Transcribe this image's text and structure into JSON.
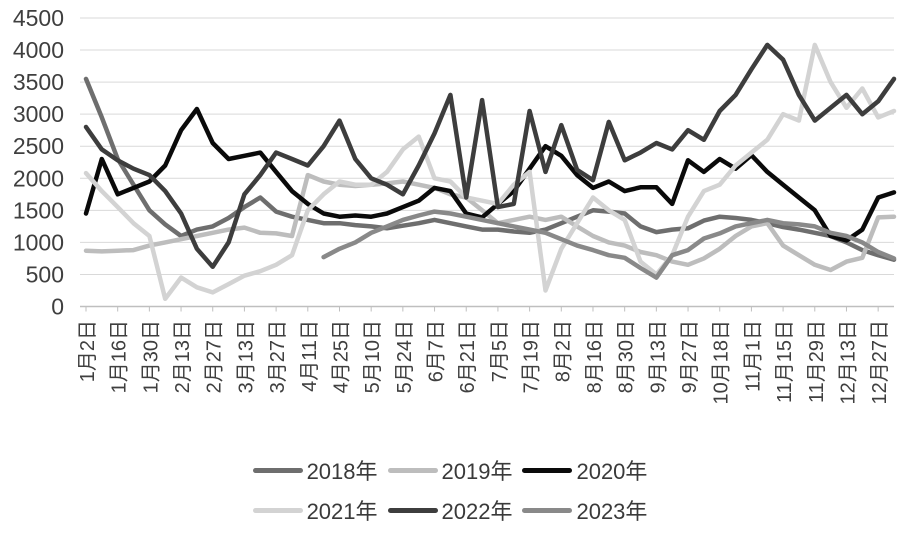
{
  "chart_data": {
    "type": "line",
    "title": "",
    "xlabel": "",
    "ylabel": "",
    "ylim": [
      0,
      4500
    ],
    "y_tick_step": 500,
    "y_tick_labels": [
      "0",
      "500",
      "1000",
      "1500",
      "2000",
      "2500",
      "3000",
      "3500",
      "4000",
      "4500"
    ],
    "grid": "horizontal-gridlines-on",
    "legend_position": "bottom-two-rows",
    "points_per_series": 52,
    "x_tick_point_indices": [
      0,
      2,
      4,
      6,
      8,
      10,
      12,
      14,
      16,
      18,
      20,
      22,
      24,
      26,
      28,
      30,
      32,
      34,
      36,
      38,
      40,
      42,
      44,
      46,
      48,
      50
    ],
    "x_tick_labels": [
      "1月2日",
      "1月16日",
      "1月30日",
      "2月13日",
      "2月27日",
      "3月13日",
      "3月27日",
      "4月11日",
      "4月25日",
      "5月10日",
      "5月24日",
      "6月7日",
      "6月21日",
      "7月5日",
      "7月19日",
      "8月2日",
      "8月16日",
      "8月30日",
      "9月13日",
      "9月27日",
      "10月18日",
      "11月1日",
      "11月15日",
      "11月29日",
      "12月13日",
      "12月27日"
    ],
    "legend_rows": [
      [
        "2018年",
        "2019年",
        "2020年"
      ],
      [
        "2021年",
        "2022年",
        "2023年"
      ]
    ],
    "series": [
      {
        "name": "2018年",
        "color": "#6e6e6e",
        "values": [
          3550,
          2950,
          2300,
          1900,
          1500,
          1280,
          1100,
          1200,
          1250,
          1380,
          1550,
          1700,
          1480,
          1400,
          1350,
          1300,
          1300,
          1270,
          1250,
          1220,
          1260,
          1300,
          1350,
          1300,
          1250,
          1200,
          1200,
          1170,
          1150,
          1200,
          1300,
          1400,
          1500,
          1480,
          1450,
          1250,
          1160,
          1200,
          1220,
          1340,
          1400,
          1380,
          1350,
          1300,
          1240,
          1200,
          1150,
          1100,
          1000,
          880,
          800,
          730
        ]
      },
      {
        "name": "2019年",
        "color": "#bdbdbd",
        "values": [
          870,
          860,
          870,
          880,
          950,
          1000,
          1050,
          1100,
          1150,
          1200,
          1230,
          1150,
          1140,
          1100,
          2050,
          1950,
          1900,
          1880,
          1900,
          1920,
          1950,
          1900,
          1850,
          1750,
          1700,
          1500,
          1300,
          1350,
          1400,
          1350,
          1400,
          1250,
          1100,
          1000,
          950,
          850,
          800,
          700,
          650,
          750,
          900,
          1100,
          1250,
          1300,
          950,
          800,
          650,
          570,
          700,
          760,
          1390,
          1400
        ]
      },
      {
        "name": "2020年",
        "color": "#0a0a0a",
        "values": [
          1450,
          2300,
          1750,
          1850,
          1950,
          2200,
          2750,
          3080,
          2550,
          2300,
          2350,
          2400,
          2100,
          1800,
          1600,
          1450,
          1400,
          1420,
          1400,
          1450,
          1550,
          1650,
          1850,
          1800,
          1450,
          1390,
          1600,
          1800,
          2150,
          2500,
          2350,
          2050,
          1850,
          1950,
          1800,
          1860,
          1860,
          1600,
          2280,
          2100,
          2300,
          2150,
          2360,
          2100,
          1900,
          1700,
          1500,
          1100,
          1030,
          1200,
          1700,
          1780
        ]
      },
      {
        "name": "2021年",
        "color": "#d3d3d3",
        "values": [
          2080,
          1800,
          1550,
          1300,
          1100,
          120,
          450,
          300,
          220,
          350,
          480,
          550,
          650,
          800,
          1500,
          1750,
          1950,
          1900,
          1900,
          2100,
          2450,
          2650,
          2000,
          1950,
          1700,
          1650,
          1600,
          1900,
          2100,
          250,
          900,
          1300,
          1700,
          1500,
          1350,
          700,
          500,
          800,
          1400,
          1800,
          1900,
          2200,
          2400,
          2600,
          3000,
          2900,
          4080,
          3500,
          3100,
          3400,
          2950,
          3050
        ]
      },
      {
        "name": "2022年",
        "color": "#3d3d3d",
        "values": [
          2800,
          2450,
          2280,
          2150,
          2050,
          1800,
          1450,
          900,
          620,
          1000,
          1750,
          2050,
          2400,
          2300,
          2200,
          2500,
          2900,
          2300,
          2000,
          1900,
          1750,
          2200,
          2700,
          3300,
          1700,
          3220,
          1550,
          1600,
          3050,
          2100,
          2830,
          2130,
          1970,
          2880,
          2280,
          2400,
          2550,
          2450,
          2750,
          2600,
          3050,
          3300,
          3700,
          4080,
          3850,
          3300,
          2900,
          3100,
          3300,
          3000,
          3200,
          3550
        ]
      },
      {
        "name": "2023年",
        "color": "#898989",
        "values": [
          null,
          null,
          null,
          null,
          null,
          null,
          null,
          null,
          null,
          null,
          null,
          null,
          null,
          null,
          null,
          770,
          900,
          1000,
          1150,
          1250,
          1350,
          1420,
          1480,
          1450,
          1400,
          1350,
          1300,
          1250,
          1200,
          1150,
          1050,
          950,
          880,
          800,
          760,
          600,
          450,
          800,
          880,
          1060,
          1140,
          1250,
          1300,
          1350,
          1300,
          1280,
          1250,
          1150,
          1100,
          1000,
          850,
          750
        ]
      }
    ],
    "style": {
      "gridline_color": "#d9d9d9",
      "axis_line_color": "#bfbfbf",
      "tick_label_color": "#3f3f3f",
      "line_width": 4.5,
      "background": "#ffffff"
    }
  }
}
